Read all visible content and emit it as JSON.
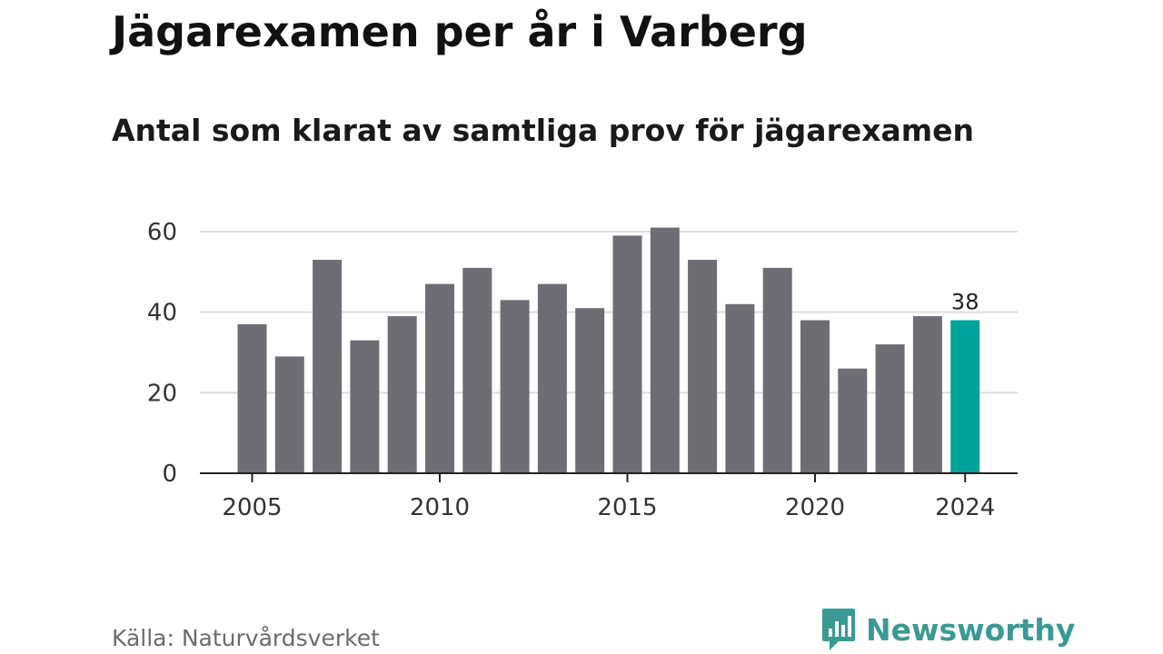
{
  "header": {
    "title": "Jägarexamen per år i Varberg",
    "subtitle": "Antal som klarat av samtliga prov för jägarexamen"
  },
  "footer": {
    "source": "Källa: Naturvårdsverket",
    "brand": "Newsworthy"
  },
  "colors": {
    "bar": "#6e6d73",
    "highlight": "#00a39a",
    "brand": "#3a9a93",
    "grid": "#dddddd",
    "axis": "#222222"
  },
  "chart_data": {
    "type": "bar",
    "title": "Jägarexamen per år i Varberg",
    "subtitle": "Antal som klarat av samtliga prov för jägarexamen",
    "x": [
      2005,
      2006,
      2007,
      2008,
      2009,
      2010,
      2011,
      2012,
      2013,
      2014,
      2015,
      2016,
      2017,
      2018,
      2019,
      2020,
      2021,
      2022,
      2023,
      2024
    ],
    "values": [
      37,
      29,
      53,
      33,
      39,
      47,
      51,
      43,
      47,
      41,
      59,
      61,
      53,
      42,
      51,
      38,
      26,
      32,
      39,
      38
    ],
    "x_ticks": [
      2005,
      2010,
      2015,
      2020,
      2024
    ],
    "y_ticks": [
      0,
      20,
      40,
      60
    ],
    "ylim": [
      0,
      60
    ],
    "grid": true,
    "highlight": {
      "x": 2024,
      "label": "38"
    },
    "xlabel": "",
    "ylabel": ""
  }
}
